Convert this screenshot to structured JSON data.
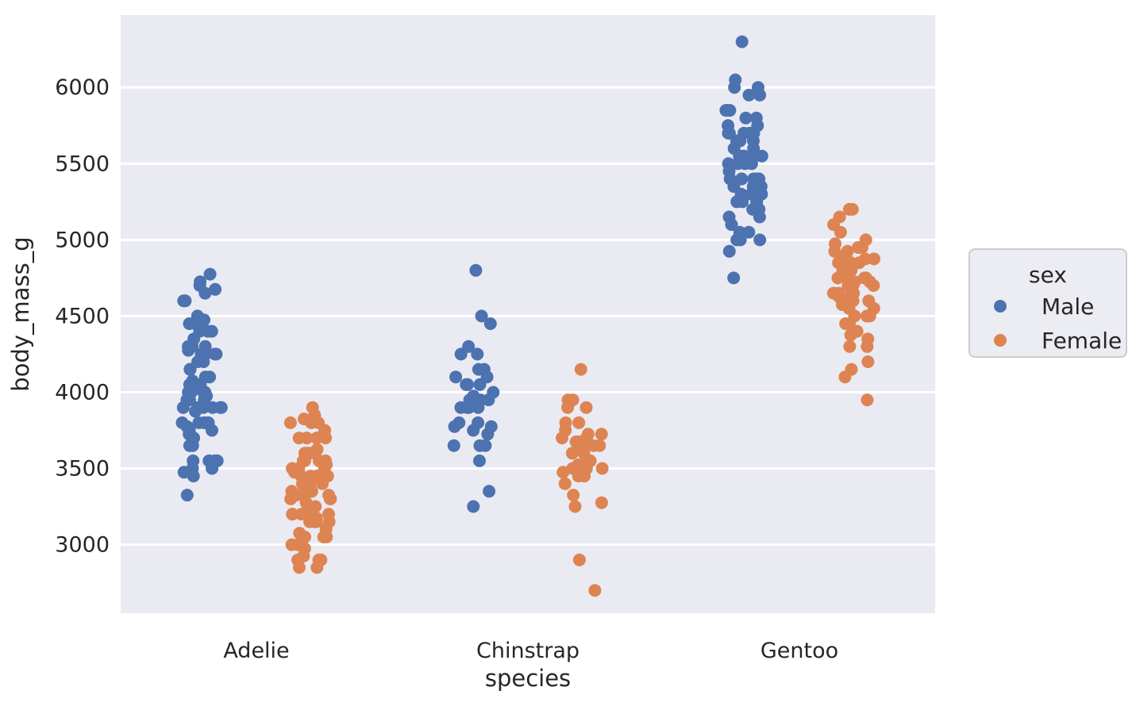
{
  "figure": {
    "background": "#ffffff",
    "plot_background": "#eaeaf2",
    "grid_color": "#ffffff",
    "text_color": "#262626"
  },
  "chart_data": {
    "type": "scatter",
    "subtype": "strip-plot-dodged",
    "title": "",
    "xlabel": "species",
    "ylabel": "body_mass_g",
    "categories": [
      "Adelie",
      "Chinstrap",
      "Gentoo"
    ],
    "y_ticks": [
      3000,
      3500,
      4000,
      4500,
      5000,
      5500,
      6000
    ],
    "ylim": [
      2550,
      6475
    ],
    "grid": true,
    "legend": {
      "title": "sex",
      "position": "right-outside",
      "entries": [
        {
          "label": "Male",
          "color": "#4c72b0"
        },
        {
          "label": "Female",
          "color": "#dd8452"
        }
      ]
    },
    "series": [
      {
        "name": "Male",
        "color": "#4c72b0",
        "groups": {
          "Adelie": [
            3750,
            3650,
            4675,
            3800,
            4400,
            4500,
            4200,
            3800,
            3950,
            3800,
            3550,
            3950,
            3900,
            3900,
            4150,
            3550,
            4650,
            3900,
            4400,
            4600,
            4150,
            4300,
            4050,
            3700,
            3800,
            3750,
            4400,
            4050,
            3950,
            4100,
            4450,
            3900,
            4150,
            4250,
            3900,
            4000,
            4700,
            4200,
            3550,
            3800,
            3950,
            4300,
            4450,
            4300,
            4350,
            4100,
            4725,
            4250,
            3550,
            3900,
            4775,
            4600,
            4275,
            4075,
            3775,
            3325,
            3500,
            3875,
            4000,
            4300,
            4000,
            3500,
            4475,
            3900,
            3975,
            4250,
            3475,
            3725,
            3650,
            4250,
            3475,
            3450,
            4000
          ],
          "Chinstrap": [
            3900,
            3800,
            4150,
            3950,
            3800,
            3350,
            4050,
            4050,
            3950,
            3650,
            3725,
            4000,
            3650,
            4250,
            3750,
            4050,
            3650,
            3900,
            3550,
            4450,
            3900,
            4150,
            4250,
            3900,
            3975,
            4100,
            3775,
            4100,
            3775,
            3250,
            3950,
            4800,
            4500,
            4300
          ],
          "Gentoo": [
            5700,
            5700,
            5400,
            5200,
            5150,
            5550,
            5850,
            5850,
            6300,
            5350,
            5700,
            5050,
            5100,
            5650,
            5550,
            5250,
            6050,
            5400,
            5250,
            5350,
            5700,
            4750,
            5550,
            5400,
            5300,
            5300,
            5000,
            5050,
            5000,
            5550,
            5300,
            5650,
            5700,
            5800,
            4925,
            5250,
            5600,
            5500,
            5500,
            5500,
            5950,
            5500,
            5850,
            6000,
            5750,
            5400,
            5000,
            5950,
            5450,
            5350,
            5600,
            5300,
            5550,
            5400,
            5650,
            5200,
            5150,
            6000,
            5400,
            5800,
            5750
          ]
        }
      },
      {
        "name": "Female",
        "color": "#dd8452",
        "groups": {
          "Adelie": [
            3800,
            3250,
            3450,
            3625,
            3200,
            3700,
            3450,
            3325,
            3400,
            3800,
            3150,
            3200,
            3150,
            3250,
            3300,
            3325,
            3900,
            3300,
            3100,
            3000,
            3425,
            2975,
            3450,
            3500,
            3450,
            2900,
            3550,
            2850,
            3150,
            3600,
            2850,
            3350,
            3050,
            3600,
            3550,
            3700,
            3700,
            3550,
            3200,
            3800,
            3350,
            3500,
            3600,
            3550,
            3400,
            3300,
            3700,
            2900,
            3725,
            3075,
            2925,
            3750,
            3175,
            3825,
            3200,
            3850,
            2900,
            3350,
            3150,
            3450,
            3050,
            3275,
            3050,
            3325,
            3500,
            3425,
            3175,
            3400,
            3400,
            3050,
            3000,
            3475,
            3525
          ],
          "Chinstrap": [
            3500,
            3900,
            3650,
            3525,
            3725,
            3950,
            3250,
            3750,
            4150,
            3600,
            3800,
            3275,
            3450,
            3650,
            3550,
            3500,
            3675,
            3400,
            3800,
            3700,
            3450,
            3500,
            3675,
            3325,
            3950,
            3600,
            3550,
            3900,
            2700,
            3725,
            3650,
            3475,
            2900,
            3700
          ],
          "Gentoo": [
            4500,
            4450,
            4550,
            4800,
            4400,
            4650,
            4650,
            4200,
            4150,
            4800,
            4400,
            4700,
            4500,
            4875,
            4950,
            4750,
            4625,
            4725,
            4750,
            4600,
            4875,
            4950,
            4750,
            4850,
            4875,
            4625,
            4850,
            4975,
            4700,
            4575,
            5000,
            4650,
            4375,
            4925,
            4850,
            5200,
            4925,
            4350,
            4725,
            4750,
            4600,
            4600,
            4700,
            4500,
            5050,
            5150,
            3950,
            4300,
            4450,
            4300,
            4100,
            4800,
            4650,
            4900,
            5100,
            5200,
            4700,
            4550
          ]
        }
      }
    ]
  }
}
